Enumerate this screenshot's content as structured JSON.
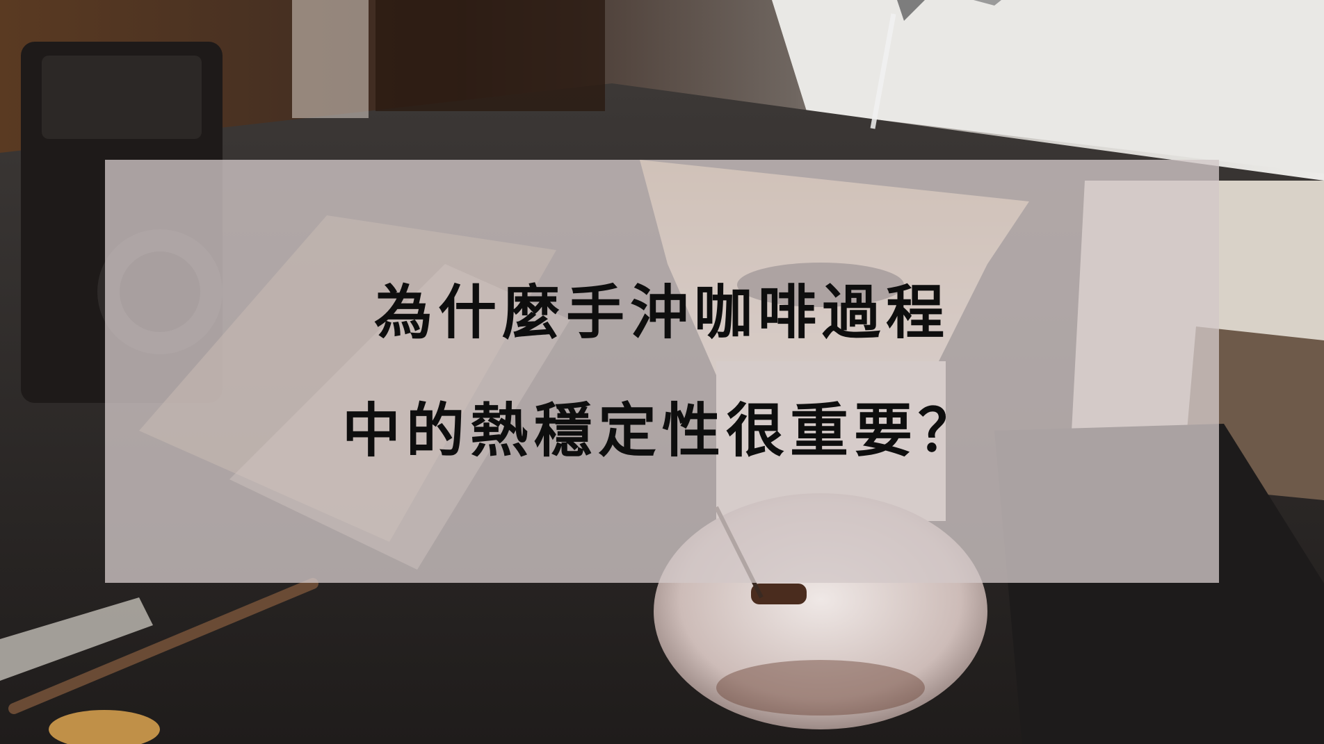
{
  "headline": {
    "line1": "為什麼手沖咖啡過程",
    "line2": "中的熱穩定性很重要？"
  }
}
